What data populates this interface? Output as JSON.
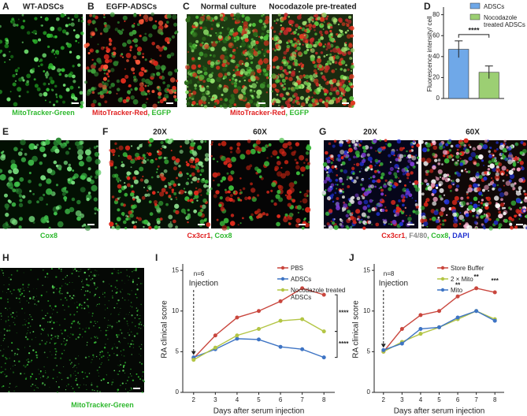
{
  "panels": {
    "A": {
      "letter": "A",
      "titles": [
        "WT-ADSCs"
      ],
      "caption": [
        {
          "text": "MitoTracker-Green",
          "color": "#2db82d"
        }
      ]
    },
    "B": {
      "letter": "B",
      "titles": [
        "EGFP-ADSCs"
      ],
      "caption": [
        {
          "text": "MitoTracker-Red",
          "color": "#e02020"
        },
        {
          "text": ", EGFP",
          "color": "#2db82d"
        }
      ]
    },
    "C": {
      "letter": "C",
      "titles": [
        "Normal culture",
        "Nocodazole pre-treated"
      ],
      "caption": [
        {
          "text": "MitoTracker-Red",
          "color": "#e02020"
        },
        {
          "text": ", EGFP",
          "color": "#2db82d"
        }
      ]
    },
    "E": {
      "letter": "E",
      "titles": [],
      "caption": [
        {
          "text": "Cox8",
          "color": "#2db82d"
        }
      ]
    },
    "F": {
      "letter": "F",
      "titles": [
        "20X",
        "60X"
      ],
      "caption": [
        {
          "text": "Cx3cr1",
          "color": "#e02020"
        },
        {
          "text": ", Cox8",
          "color": "#2db82d"
        }
      ]
    },
    "G": {
      "letter": "G",
      "titles": [
        "20X",
        "60X"
      ],
      "caption": [
        {
          "text": "Cx3cr1",
          "color": "#e02020"
        },
        {
          "text": ", F4/80",
          "color": "#888888"
        },
        {
          "text": ", Cox8",
          "color": "#2db82d"
        },
        {
          "text": ", DAPI",
          "color": "#2030d0"
        }
      ]
    },
    "H": {
      "letter": "H",
      "titles": [],
      "caption": [
        {
          "text": "MitoTracker-Green",
          "color": "#2db82d"
        }
      ]
    }
  },
  "chart_data": [
    {
      "type": "bar",
      "panel": "D",
      "y_label": "Fluorescence intensity/ cell",
      "categories": [
        null
      ],
      "series": [
        {
          "name": "ADSCs",
          "color": "#6fa8e8",
          "values": [
            47
          ],
          "errors": [
            8
          ]
        },
        {
          "name": "Nocodazole treated ADSCs",
          "color": "#9ccf73",
          "values": [
            25
          ],
          "errors": [
            6
          ]
        }
      ],
      "ylim": [
        0,
        85
      ],
      "yticks": [
        0,
        20,
        40,
        60,
        80
      ],
      "annotations": [
        "****"
      ]
    },
    {
      "type": "line",
      "panel": "I",
      "x_label": "Days after serum injection",
      "y_label": "RA clinical score",
      "x": [
        2,
        3,
        4,
        5,
        6,
        7,
        8
      ],
      "series": [
        {
          "name": "PBS",
          "color": "#c9463d",
          "values": [
            4.2,
            7,
            9.2,
            10,
            11.2,
            12.8,
            12
          ]
        },
        {
          "name": "ADSCs",
          "color": "#3e74c4",
          "values": [
            4.3,
            5.3,
            6.6,
            6.5,
            5.6,
            5.3,
            4.3
          ]
        },
        {
          "name": "Nocodazole treated ADSCs",
          "color": "#b3c544",
          "values": [
            4,
            5.5,
            7,
            7.8,
            8.8,
            9,
            7.5
          ]
        }
      ],
      "xlim": [
        1.5,
        8.5
      ],
      "xticks": [
        2,
        3,
        4,
        5,
        6,
        7,
        8
      ],
      "ylim": [
        0,
        15.5
      ],
      "yticks": [
        0,
        5,
        10,
        15
      ],
      "annotations": [
        "n=6",
        "Injection",
        "****",
        "****"
      ]
    },
    {
      "type": "line",
      "panel": "J",
      "x_label": "Days after serum injection",
      "y_label": "RA clinical score",
      "x": [
        2,
        3,
        4,
        5,
        6,
        7,
        8
      ],
      "series": [
        {
          "name": "Store Buffer",
          "color": "#c9463d",
          "values": [
            5,
            7.8,
            9.5,
            10,
            11.8,
            12.8,
            12.3
          ]
        },
        {
          "name": "2 × Mito",
          "color": "#b3c544",
          "values": [
            5,
            6.2,
            7.2,
            8,
            9,
            10,
            9
          ]
        },
        {
          "name": "Mito",
          "color": "#3e74c4",
          "values": [
            5.2,
            6,
            7.8,
            8,
            9.2,
            10,
            8.8
          ]
        }
      ],
      "xlim": [
        1.5,
        8.5
      ],
      "xticks": [
        2,
        3,
        4,
        5,
        6,
        7,
        8
      ],
      "ylim": [
        0,
        15.5
      ],
      "yticks": [
        0,
        5,
        10,
        15
      ],
      "annotations": [
        "n=8",
        "Injection",
        "**",
        "**",
        "***"
      ]
    }
  ]
}
